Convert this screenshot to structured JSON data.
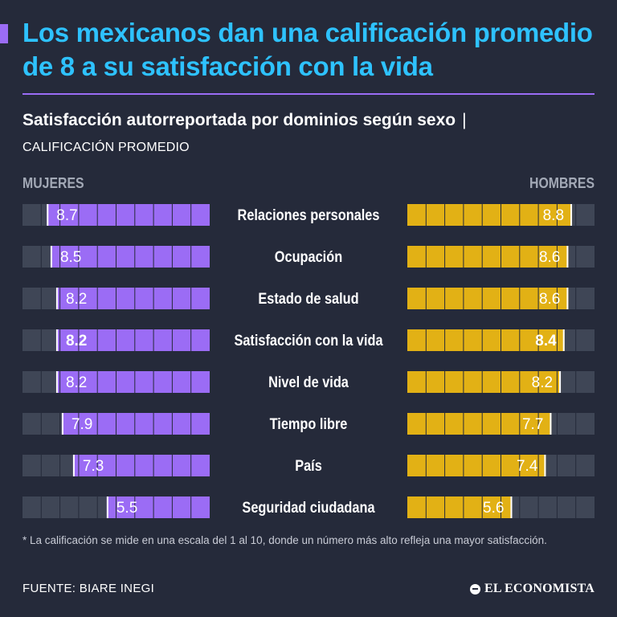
{
  "header": {
    "title": "Los mexicanos dan una calificación promedio de 8 a su satisfacción con la vida",
    "subtitle": "Satisfacción autorreportada por dominios según sexo",
    "subtitle_separator": "|",
    "unit": "CALIFICACIÓN PROMEDIO"
  },
  "chart_data": {
    "type": "bar",
    "orientation": "horizontal-butterfly",
    "scale": [
      0,
      10
    ],
    "categories": [
      "Relaciones personales",
      "Ocupación",
      "Estado de salud",
      "Satisfacción con la vida",
      "Nivel de vida",
      "Tiempo libre",
      "País",
      "Seguridad ciudadana"
    ],
    "highlight_category": "Satisfacción con la vida",
    "series": [
      {
        "name": "MUJERES",
        "color": "#9b6cf5",
        "values": [
          8.7,
          8.5,
          8.2,
          8.2,
          8.2,
          7.9,
          7.3,
          5.5
        ]
      },
      {
        "name": "HOMBRES",
        "color": "#e2b115",
        "values": [
          8.8,
          8.6,
          8.6,
          8.4,
          8.2,
          7.7,
          7.4,
          5.6
        ]
      }
    ],
    "track_color": "#3f4656"
  },
  "footer": {
    "note": "* La calificación se mide en una escala del 1 al 10, donde un número más alto refleja una mayor satisfacción.",
    "source": "FUENTE: BIARE INEGI",
    "brand": "EL ECONOMISTA",
    "brand_icon": "el-economista-logo-icon"
  }
}
